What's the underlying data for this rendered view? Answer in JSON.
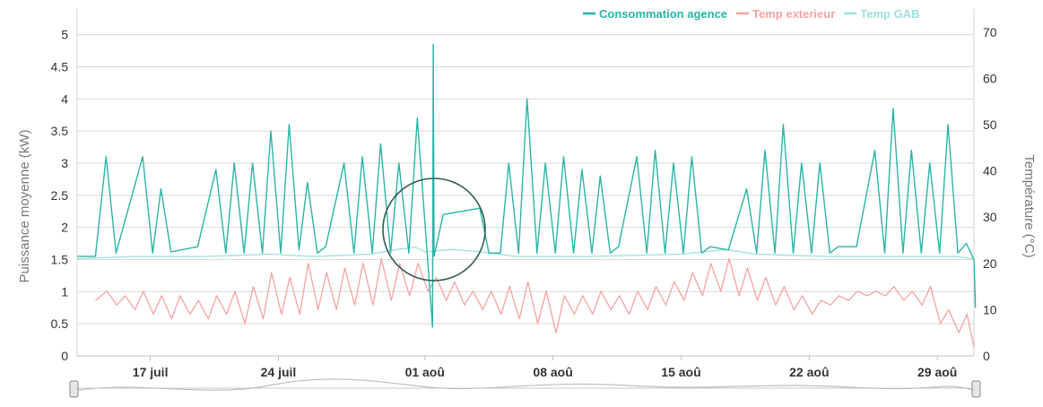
{
  "chart_data": {
    "type": "line",
    "title": "",
    "x_axis": {
      "type": "date",
      "range": [
        "2023-07-13",
        "2023-08-31"
      ],
      "tick_labels": [
        {
          "date": "2023-07-17",
          "label": "17 juil"
        },
        {
          "date": "2023-07-24",
          "label": "24 juil"
        },
        {
          "date": "2023-08-01",
          "label": "01 aoû"
        },
        {
          "date": "2023-08-08",
          "label": "08 aoû"
        },
        {
          "date": "2023-08-15",
          "label": "15 aoû"
        },
        {
          "date": "2023-08-22",
          "label": "22 aoû"
        },
        {
          "date": "2023-08-29",
          "label": "29 aoû"
        }
      ]
    },
    "y_left": {
      "label": "Puissance moyenne (kW)",
      "range": [
        0,
        5.4
      ],
      "ticks": [
        0,
        0.5,
        1,
        1.5,
        2,
        2.5,
        3,
        3.5,
        4,
        4.5,
        5
      ],
      "tick_labels": [
        "0",
        "0.5",
        "1",
        "1.5",
        "2",
        "2.5",
        "3",
        "3.5",
        "4",
        "4.5",
        "5"
      ]
    },
    "y_right": {
      "label": "Température (°C)",
      "range": [
        0,
        75
      ],
      "ticks": [
        0,
        10,
        20,
        30,
        40,
        50,
        60,
        70
      ],
      "tick_labels": [
        "0",
        "10",
        "20",
        "30",
        "40",
        "50",
        "60",
        "70"
      ]
    },
    "grid": true,
    "legend_position": "top-right",
    "series": [
      {
        "name": "Consommation agence",
        "axis": "left",
        "color": "#2ab5a5",
        "points": [
          [
            "2023-07-13T00:00",
            "1.55"
          ],
          [
            "2023-07-14T00:00",
            "1.55"
          ],
          [
            "2023-07-14T14:00",
            "3.1"
          ],
          [
            "2023-07-15T03:00",
            "1.6"
          ],
          [
            "2023-07-16T14:00",
            "3.1"
          ],
          [
            "2023-07-17T03:00",
            "1.6"
          ],
          [
            "2023-07-17T14:00",
            "2.6"
          ],
          [
            "2023-07-18T03:00",
            "1.62"
          ],
          [
            "2023-07-19T14:00",
            "1.7"
          ],
          [
            "2023-07-20T14:00",
            "2.9"
          ],
          [
            "2023-07-21T03:00",
            "1.6"
          ],
          [
            "2023-07-21T14:00",
            "3.0"
          ],
          [
            "2023-07-22T03:00",
            "1.6"
          ],
          [
            "2023-07-22T14:00",
            "3.0"
          ],
          [
            "2023-07-23T03:00",
            "1.6"
          ],
          [
            "2023-07-23T14:00",
            "3.5"
          ],
          [
            "2023-07-24T03:00",
            "1.6"
          ],
          [
            "2023-07-24T14:00",
            "3.6"
          ],
          [
            "2023-07-25T03:00",
            "1.65"
          ],
          [
            "2023-07-25T14:00",
            "2.7"
          ],
          [
            "2023-07-26T03:00",
            "1.6"
          ],
          [
            "2023-07-26T14:00",
            "1.7"
          ],
          [
            "2023-07-27T14:00",
            "3.0"
          ],
          [
            "2023-07-28T03:00",
            "1.6"
          ],
          [
            "2023-07-28T14:00",
            "3.1"
          ],
          [
            "2023-07-29T03:00",
            "1.6"
          ],
          [
            "2023-07-29T14:00",
            "3.3"
          ],
          [
            "2023-07-30T03:00",
            "1.6"
          ],
          [
            "2023-07-30T14:00",
            "3.0"
          ],
          [
            "2023-07-31T03:00",
            "1.6"
          ],
          [
            "2023-07-31T14:00",
            "3.7"
          ],
          [
            "2023-08-01T03:00",
            "1.6"
          ],
          [
            "2023-08-01T10:00",
            "0.45"
          ],
          [
            "2023-08-01T11:00",
            "4.85"
          ],
          [
            "2023-08-01T12:00",
            "1.55"
          ],
          [
            "2023-08-02T00:00",
            "2.2"
          ],
          [
            "2023-08-03T00:00",
            "2.25"
          ],
          [
            "2023-08-04T00:00",
            "2.3"
          ],
          [
            "2023-08-04T12:00",
            "1.6"
          ],
          [
            "2023-08-05T03:00",
            "1.6"
          ],
          [
            "2023-08-05T14:00",
            "3.0"
          ],
          [
            "2023-08-06T03:00",
            "1.6"
          ],
          [
            "2023-08-06T14:00",
            "4.0"
          ],
          [
            "2023-08-07T03:00",
            "1.6"
          ],
          [
            "2023-08-07T14:00",
            "3.0"
          ],
          [
            "2023-08-08T03:00",
            "1.6"
          ],
          [
            "2023-08-08T14:00",
            "3.1"
          ],
          [
            "2023-08-09T03:00",
            "1.6"
          ],
          [
            "2023-08-09T14:00",
            "2.9"
          ],
          [
            "2023-08-10T03:00",
            "1.6"
          ],
          [
            "2023-08-10T14:00",
            "2.8"
          ],
          [
            "2023-08-11T03:00",
            "1.6"
          ],
          [
            "2023-08-11T14:00",
            "1.7"
          ],
          [
            "2023-08-12T14:00",
            "3.1"
          ],
          [
            "2023-08-13T03:00",
            "1.6"
          ],
          [
            "2023-08-13T14:00",
            "3.2"
          ],
          [
            "2023-08-14T03:00",
            "1.6"
          ],
          [
            "2023-08-14T14:00",
            "3.0"
          ],
          [
            "2023-08-15T03:00",
            "1.6"
          ],
          [
            "2023-08-15T14:00",
            "3.1"
          ],
          [
            "2023-08-16T03:00",
            "1.6"
          ],
          [
            "2023-08-16T14:00",
            "1.7"
          ],
          [
            "2023-08-17T14:00",
            "1.65"
          ],
          [
            "2023-08-18T14:00",
            "2.6"
          ],
          [
            "2023-08-19T03:00",
            "1.6"
          ],
          [
            "2023-08-19T14:00",
            "3.2"
          ],
          [
            "2023-08-20T03:00",
            "1.6"
          ],
          [
            "2023-08-20T14:00",
            "3.6"
          ],
          [
            "2023-08-21T03:00",
            "1.6"
          ],
          [
            "2023-08-21T14:00",
            "3.0"
          ],
          [
            "2023-08-22T03:00",
            "1.6"
          ],
          [
            "2023-08-22T14:00",
            "3.0"
          ],
          [
            "2023-08-23T03:00",
            "1.6"
          ],
          [
            "2023-08-23T14:00",
            "1.7"
          ],
          [
            "2023-08-24T14:00",
            "1.7"
          ],
          [
            "2023-08-25T14:00",
            "3.2"
          ],
          [
            "2023-08-26T03:00",
            "1.6"
          ],
          [
            "2023-08-26T14:00",
            "3.85"
          ],
          [
            "2023-08-27T03:00",
            "1.6"
          ],
          [
            "2023-08-27T14:00",
            "3.2"
          ],
          [
            "2023-08-28T03:00",
            "1.6"
          ],
          [
            "2023-08-28T14:00",
            "3.0"
          ],
          [
            "2023-08-29T03:00",
            "1.6"
          ],
          [
            "2023-08-29T14:00",
            "3.6"
          ],
          [
            "2023-08-30T03:00",
            "1.6"
          ],
          [
            "2023-08-30T14:00",
            "1.75"
          ],
          [
            "2023-08-31T00:00",
            "1.5"
          ],
          [
            "2023-08-31T02:00",
            "0.75"
          ]
        ]
      },
      {
        "name": "Temp exterieur",
        "axis": "right",
        "color": "#f4a3a3",
        "points": [
          [
            "2023-07-14T00:00",
            "12"
          ],
          [
            "2023-07-14T15:00",
            "14"
          ],
          [
            "2023-07-15T04:00",
            "11"
          ],
          [
            "2023-07-15T15:00",
            "13"
          ],
          [
            "2023-07-16T04:00",
            "10"
          ],
          [
            "2023-07-16T15:00",
            "14"
          ],
          [
            "2023-07-17T04:00",
            "9"
          ],
          [
            "2023-07-17T15:00",
            "13"
          ],
          [
            "2023-07-18T04:00",
            "8"
          ],
          [
            "2023-07-18T15:00",
            "13"
          ],
          [
            "2023-07-19T04:00",
            "9"
          ],
          [
            "2023-07-19T15:00",
            "12"
          ],
          [
            "2023-07-20T04:00",
            "8"
          ],
          [
            "2023-07-20T15:00",
            "13"
          ],
          [
            "2023-07-21T04:00",
            "9"
          ],
          [
            "2023-07-21T15:00",
            "14"
          ],
          [
            "2023-07-22T04:00",
            "7"
          ],
          [
            "2023-07-22T15:00",
            "15"
          ],
          [
            "2023-07-23T04:00",
            "8"
          ],
          [
            "2023-07-23T15:00",
            "18"
          ],
          [
            "2023-07-24T04:00",
            "9"
          ],
          [
            "2023-07-24T15:00",
            "17"
          ],
          [
            "2023-07-25T04:00",
            "9"
          ],
          [
            "2023-07-25T15:00",
            "20"
          ],
          [
            "2023-07-26T04:00",
            "10"
          ],
          [
            "2023-07-26T15:00",
            "18"
          ],
          [
            "2023-07-27T04:00",
            "10"
          ],
          [
            "2023-07-27T15:00",
            "19"
          ],
          [
            "2023-07-28T04:00",
            "11"
          ],
          [
            "2023-07-28T15:00",
            "20"
          ],
          [
            "2023-07-29T04:00",
            "11"
          ],
          [
            "2023-07-29T15:00",
            "21"
          ],
          [
            "2023-07-30T04:00",
            "12"
          ],
          [
            "2023-07-30T15:00",
            "20"
          ],
          [
            "2023-07-31T04:00",
            "13"
          ],
          [
            "2023-07-31T15:00",
            "20"
          ],
          [
            "2023-08-01T04:00",
            "14"
          ],
          [
            "2023-08-01T15:00",
            "17"
          ],
          [
            "2023-08-02T04:00",
            "12"
          ],
          [
            "2023-08-02T15:00",
            "16"
          ],
          [
            "2023-08-03T04:00",
            "11"
          ],
          [
            "2023-08-03T15:00",
            "14"
          ],
          [
            "2023-08-04T04:00",
            "10"
          ],
          [
            "2023-08-04T15:00",
            "14"
          ],
          [
            "2023-08-05T04:00",
            "9"
          ],
          [
            "2023-08-05T15:00",
            "15"
          ],
          [
            "2023-08-06T04:00",
            "8"
          ],
          [
            "2023-08-06T15:00",
            "16"
          ],
          [
            "2023-08-07T04:00",
            "7"
          ],
          [
            "2023-08-07T15:00",
            "14"
          ],
          [
            "2023-08-08T04:00",
            "5"
          ],
          [
            "2023-08-08T15:00",
            "13"
          ],
          [
            "2023-08-09T04:00",
            "9"
          ],
          [
            "2023-08-09T15:00",
            "13"
          ],
          [
            "2023-08-10T04:00",
            "9"
          ],
          [
            "2023-08-10T15:00",
            "14"
          ],
          [
            "2023-08-11T04:00",
            "10"
          ],
          [
            "2023-08-11T15:00",
            "13"
          ],
          [
            "2023-08-12T04:00",
            "9"
          ],
          [
            "2023-08-12T15:00",
            "14"
          ],
          [
            "2023-08-13T04:00",
            "10"
          ],
          [
            "2023-08-13T15:00",
            "15"
          ],
          [
            "2023-08-14T04:00",
            "11"
          ],
          [
            "2023-08-14T15:00",
            "16"
          ],
          [
            "2023-08-15T04:00",
            "12"
          ],
          [
            "2023-08-15T15:00",
            "18"
          ],
          [
            "2023-08-16T04:00",
            "13"
          ],
          [
            "2023-08-16T15:00",
            "20"
          ],
          [
            "2023-08-17T04:00",
            "14"
          ],
          [
            "2023-08-17T15:00",
            "21"
          ],
          [
            "2023-08-18T04:00",
            "13"
          ],
          [
            "2023-08-18T15:00",
            "19"
          ],
          [
            "2023-08-19T04:00",
            "12"
          ],
          [
            "2023-08-19T15:00",
            "17"
          ],
          [
            "2023-08-20T04:00",
            "11"
          ],
          [
            "2023-08-20T15:00",
            "15"
          ],
          [
            "2023-08-21T04:00",
            "10"
          ],
          [
            "2023-08-21T15:00",
            "13"
          ],
          [
            "2023-08-22T04:00",
            "9"
          ],
          [
            "2023-08-22T15:00",
            "12"
          ],
          [
            "2023-08-23T04:00",
            "11"
          ],
          [
            "2023-08-23T15:00",
            "13"
          ],
          [
            "2023-08-24T04:00",
            "12"
          ],
          [
            "2023-08-24T15:00",
            "14"
          ],
          [
            "2023-08-25T04:00",
            "13"
          ],
          [
            "2023-08-25T15:00",
            "14"
          ],
          [
            "2023-08-26T04:00",
            "13"
          ],
          [
            "2023-08-26T15:00",
            "15"
          ],
          [
            "2023-08-27T04:00",
            "12"
          ],
          [
            "2023-08-27T15:00",
            "14"
          ],
          [
            "2023-08-28T04:00",
            "11"
          ],
          [
            "2023-08-28T15:00",
            "15"
          ],
          [
            "2023-08-29T04:00",
            "7"
          ],
          [
            "2023-08-29T15:00",
            "10"
          ],
          [
            "2023-08-30T04:00",
            "5"
          ],
          [
            "2023-08-30T15:00",
            "9"
          ],
          [
            "2023-08-31T00:00",
            "2"
          ]
        ]
      },
      {
        "name": "Temp GAB",
        "axis": "right",
        "color": "#9fe0dc",
        "points": [
          [
            "2023-07-13T00:00",
            "21"
          ],
          [
            "2023-07-16T00:00",
            "21.5"
          ],
          [
            "2023-07-20T00:00",
            "21.5"
          ],
          [
            "2023-07-23T12:00",
            "22"
          ],
          [
            "2023-07-26T00:00",
            "21.5"
          ],
          [
            "2023-07-29T00:00",
            "22"
          ],
          [
            "2023-07-30T12:00",
            "23"
          ],
          [
            "2023-07-31T12:00",
            "23.5"
          ],
          [
            "2023-08-01T00:00",
            "22.5"
          ],
          [
            "2023-08-02T12:00",
            "23"
          ],
          [
            "2023-08-04T00:00",
            "22.5"
          ],
          [
            "2023-08-06T00:00",
            "21.5"
          ],
          [
            "2023-08-10T00:00",
            "21.5"
          ],
          [
            "2023-08-15T00:00",
            "22"
          ],
          [
            "2023-08-17T12:00",
            "23"
          ],
          [
            "2023-08-19T00:00",
            "22"
          ],
          [
            "2023-08-23T00:00",
            "21.5"
          ],
          [
            "2023-08-27T00:00",
            "21.5"
          ],
          [
            "2023-08-30T00:00",
            "21.5"
          ],
          [
            "2023-08-31T00:00",
            "21"
          ]
        ]
      }
    ]
  },
  "legend": [
    {
      "label": "Consommation agence",
      "color": "#2ab5a5"
    },
    {
      "label": "Temp exterieur",
      "color": "#f4a3a3"
    },
    {
      "label": "Temp GAB",
      "color": "#9fe0dc"
    }
  ]
}
